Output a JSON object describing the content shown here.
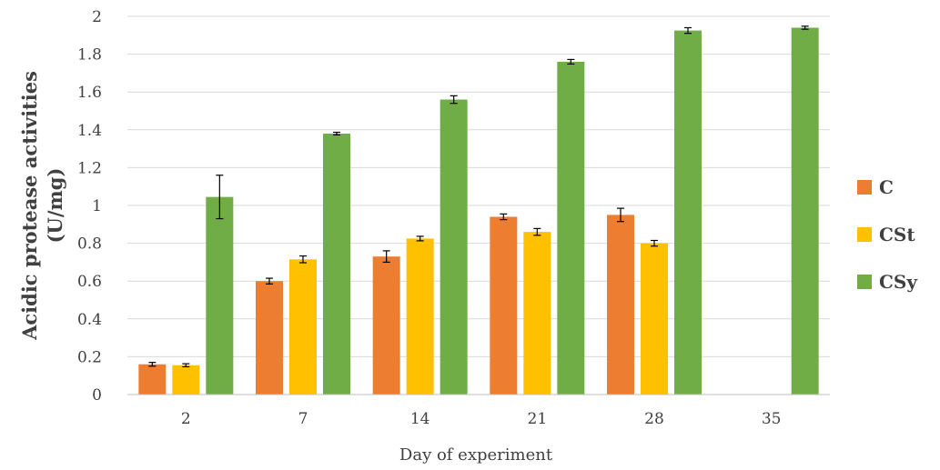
{
  "chart_data": {
    "type": "bar",
    "categories": [
      "2",
      "7",
      "14",
      "21",
      "28",
      "35"
    ],
    "series": [
      {
        "name": "C",
        "color": "#ed7d31",
        "values": [
          0.16,
          0.6,
          0.73,
          0.94,
          0.95,
          null
        ],
        "errors": [
          0.01,
          0.015,
          0.03,
          0.015,
          0.035,
          null
        ]
      },
      {
        "name": "CSt",
        "color": "#ffc000",
        "values": [
          0.155,
          0.715,
          0.825,
          0.86,
          0.8,
          null
        ],
        "errors": [
          0.008,
          0.018,
          0.012,
          0.018,
          0.015,
          null
        ]
      },
      {
        "name": "CSy",
        "color": "#70ad47",
        "values": [
          1.045,
          1.38,
          1.56,
          1.76,
          1.925,
          1.94
        ],
        "errors": [
          0.115,
          0.007,
          0.02,
          0.012,
          0.015,
          0.008
        ]
      }
    ],
    "title": "",
    "xlabel": "Day of experiment",
    "ylabel_line1": "Acidic protease activities",
    "ylabel_line2": "(U/mg)",
    "ylim": [
      0,
      2
    ],
    "yticks": [
      "0",
      "0.2",
      "0.4",
      "0.6",
      "0.8",
      "1",
      "1.2",
      "1.4",
      "1.6",
      "1.8",
      "2"
    ],
    "grid": true,
    "legend_position": "right"
  }
}
